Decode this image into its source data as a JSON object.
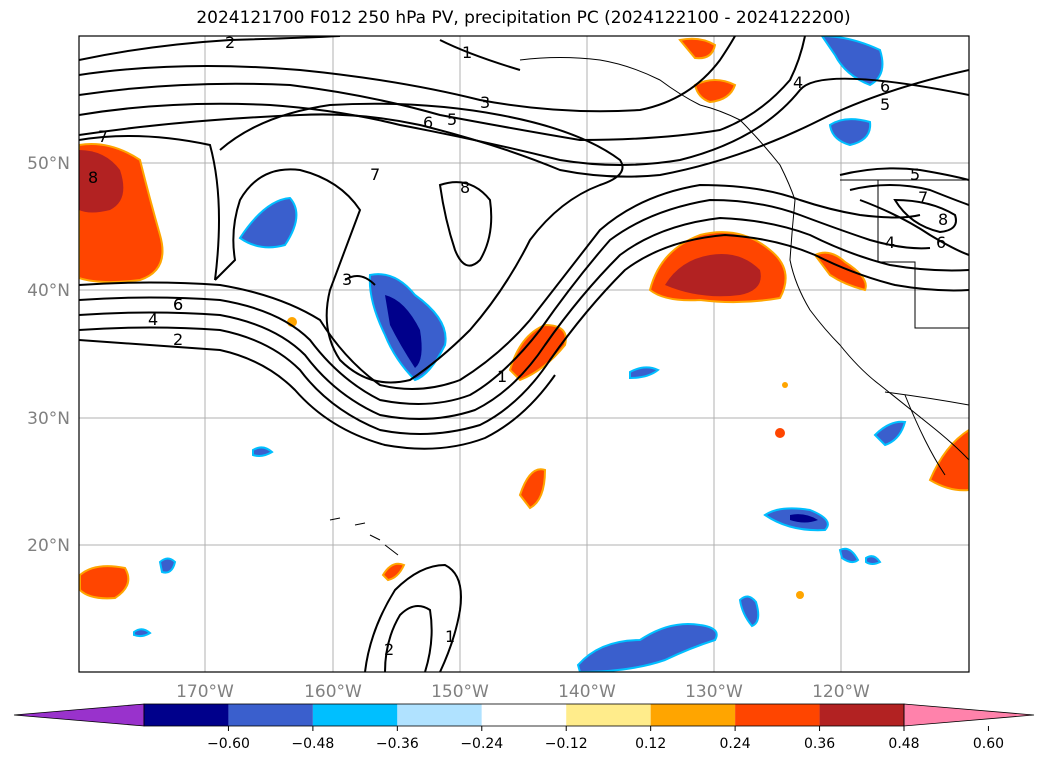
{
  "title": "2024121700 F012 250 hPa PV, precipitation PC (2024122100 - 2024122200)",
  "map": {
    "lon_labels": [
      "170°W",
      "160°W",
      "150°W",
      "140°W",
      "130°W",
      "120°W"
    ],
    "lat_labels": [
      "50°N",
      "40°N",
      "30°N",
      "20°N"
    ],
    "pv_contour_labels": [
      "2",
      "1",
      "3",
      "6",
      "5",
      "4",
      "6",
      "5",
      "7",
      "6",
      "5",
      "7",
      "8",
      "8",
      "7",
      "8",
      "6",
      "4",
      "6",
      "4",
      "2",
      "3",
      "1",
      "2",
      "1"
    ]
  },
  "colorbar": {
    "colors": [
      "#9932cc",
      "#00008b",
      "#3a5fcd",
      "#00bfff",
      "#b0e2ff",
      "#ffffff",
      "#ffec8b",
      "#ffa500",
      "#ff4500",
      "#b22222",
      "#ff82ab"
    ],
    "tick_labels": [
      "−0.60",
      "−0.48",
      "−0.36",
      "−0.24",
      "−0.12",
      "0.12",
      "0.24",
      "0.36",
      "0.48",
      "0.60"
    ]
  }
}
